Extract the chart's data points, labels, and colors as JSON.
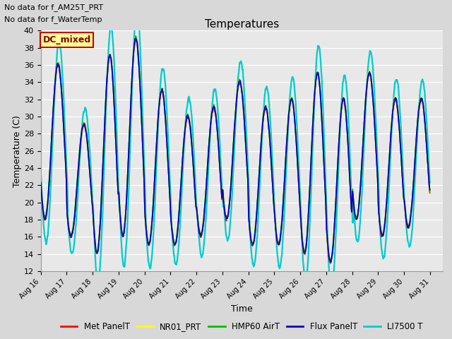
{
  "title": "Temperatures",
  "xlabel": "Time",
  "ylabel": "Temperature (C)",
  "ylim": [
    12,
    40
  ],
  "yticks": [
    12,
    14,
    16,
    18,
    20,
    22,
    24,
    26,
    28,
    30,
    32,
    34,
    36,
    38,
    40
  ],
  "annotation_lines": [
    "No data for f_AM25T_PRT",
    "No data for f_WaterTemp"
  ],
  "legend_label": "DC_mixed",
  "series": [
    "Met PanelT",
    "NR01_PRT",
    "HMP60 AirT",
    "Flux PanelT",
    "LI7500 T"
  ],
  "colors": [
    "#ff0000",
    "#ffff00",
    "#00bb00",
    "#0000cc",
    "#00cccc"
  ],
  "background_color": "#e8e8e8",
  "grid_color": "#ffffff",
  "legend_box_color": "#ffff99",
  "legend_box_edge": "#cc0000",
  "figsize": [
    6.4,
    4.8
  ],
  "dpi": 100
}
